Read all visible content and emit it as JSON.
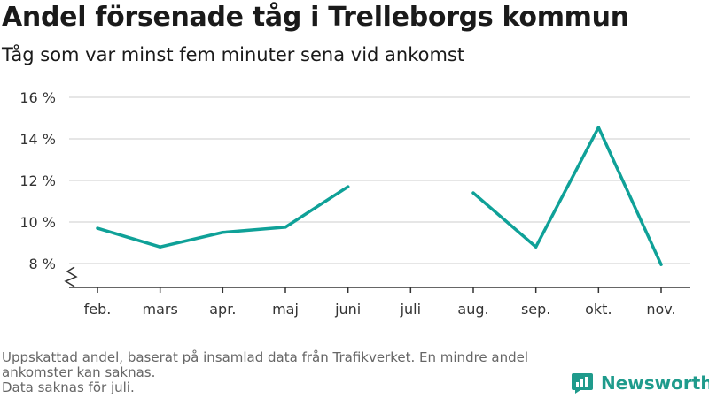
{
  "header": {
    "title": "Andel försenade tåg i Trelleborgs kommun",
    "subtitle": "Tåg som var minst fem minuter sena vid ankomst"
  },
  "footer": {
    "note_line1": "Uppskattad andel, baserat på insamlad data från Trafikverket. En mindre andel ankomster kan saknas.",
    "note_line2": "Data saknas för juli."
  },
  "brand": {
    "name": "Newsworthy",
    "logo_icon": "newsworthy-logo-icon"
  },
  "colors": {
    "line": "#0fa198",
    "grid": "#dddddd",
    "axis": "#333333",
    "brand": "#1f9b8c"
  },
  "chart_data": {
    "type": "line",
    "title": "Andel försenade tåg i Trelleborgs kommun",
    "subtitle": "Tåg som var minst fem minuter sena vid ankomst",
    "categories": [
      "feb.",
      "mars",
      "apr.",
      "maj",
      "juni",
      "juli",
      "aug.",
      "sep.",
      "okt.",
      "nov."
    ],
    "series": [
      {
        "values": [
          9.7,
          8.8,
          9.5,
          9.75,
          11.7,
          null,
          11.4,
          8.8,
          14.55,
          7.95
        ]
      }
    ],
    "yticks": [
      8,
      10,
      12,
      14,
      16
    ],
    "ytick_labels": [
      "8 %",
      "10 %",
      "12 %",
      "14 %",
      "16 %"
    ],
    "ylim": [
      7,
      16.4
    ],
    "axis_break": true,
    "grid": true,
    "legend": "none"
  }
}
